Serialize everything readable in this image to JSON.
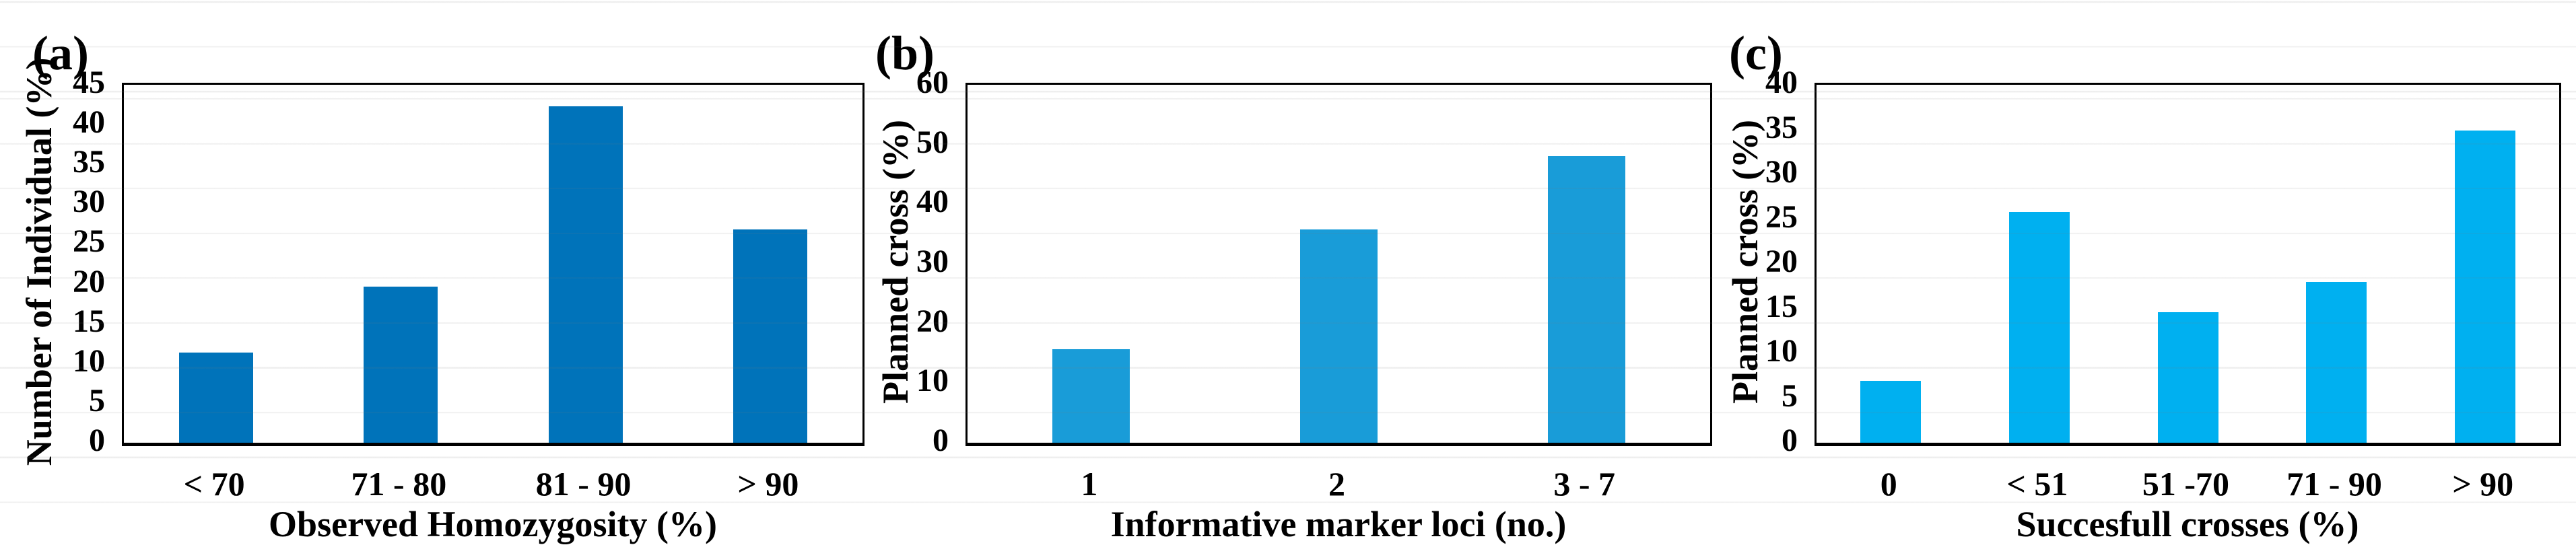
{
  "figure": {
    "description_labels": [
      "(a)",
      "(b)",
      "(c)"
    ],
    "background_color": "#ffffff",
    "stripe_color": "#f0f0f0",
    "text_color": "#000000"
  },
  "chart_data": [
    {
      "type": "bar",
      "panel": "(a)",
      "title": "",
      "ylabel": "Number of Individual (%)",
      "xlabel": "Observed Homozygosity (%)",
      "categories": [
        "< 70",
        "71 - 80",
        "81 - 90",
        "> 90"
      ],
      "values": [
        11.3,
        19.6,
        42.3,
        26.8
      ],
      "ylim": [
        0,
        45
      ],
      "yticks": [
        0,
        5,
        10,
        15,
        20,
        25,
        30,
        35,
        40,
        45
      ],
      "grid": false,
      "legend": "none",
      "bar_color": "#0073BA"
    },
    {
      "type": "bar",
      "panel": "(b)",
      "title": "",
      "ylabel": "Planned cross (%)",
      "xlabel": "Informative marker loci (no.)",
      "categories": [
        "1",
        "2",
        "3 - 7"
      ],
      "values": [
        15.7,
        35.7,
        48.0
      ],
      "ylim": [
        0,
        60
      ],
      "yticks": [
        0,
        10,
        20,
        30,
        40,
        50,
        60
      ],
      "grid": false,
      "legend": "none",
      "bar_color": "#199CD8"
    },
    {
      "type": "bar",
      "panel": "(c)",
      "title": "",
      "ylabel": "Planned cross (%)",
      "xlabel": "Succesfull crosses (%)",
      "categories": [
        "0",
        "< 51",
        "51 -70",
        "71 - 90",
        "> 90"
      ],
      "values": [
        6.9,
        25.8,
        14.6,
        18.0,
        34.9
      ],
      "ylim": [
        0,
        40
      ],
      "yticks": [
        0,
        5,
        10,
        15,
        20,
        25,
        30,
        35,
        40
      ],
      "grid": false,
      "legend": "none",
      "bar_color": "#00B0F0"
    }
  ]
}
